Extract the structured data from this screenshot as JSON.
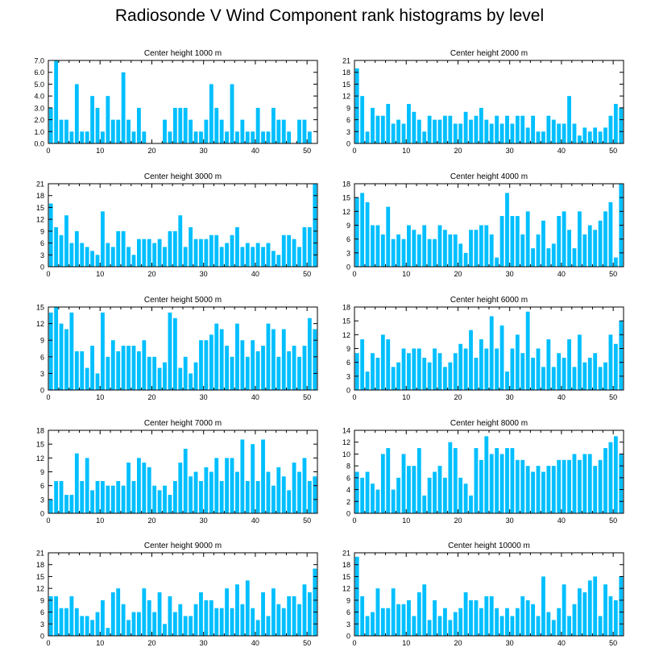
{
  "title": "Radiosonde V Wind Component rank histograms by level",
  "bar_color": "#00bfff",
  "chart_data": [
    {
      "type": "bar",
      "title": "Center height 1000 m",
      "ylim": [
        0,
        7
      ],
      "yticks": [
        "0.0",
        "1.0",
        "2.0",
        "3.0",
        "4.0",
        "5.0",
        "6.0",
        "7.0"
      ],
      "xticks": [
        "0",
        "10",
        "20",
        "30",
        "40",
        "50"
      ],
      "x": [
        0,
        1,
        2,
        3,
        4,
        5,
        6,
        7,
        8,
        9,
        10,
        11,
        12,
        13,
        14,
        15,
        16,
        17,
        18,
        19,
        20,
        21,
        22,
        23,
        24,
        25,
        26,
        27,
        28,
        29,
        30,
        31,
        32,
        33,
        34,
        35,
        36,
        37,
        38,
        39,
        40,
        41,
        42,
        43,
        44,
        45,
        46,
        47,
        48,
        49,
        50,
        51
      ],
      "values": [
        3,
        7,
        2,
        2,
        1,
        5,
        1,
        1,
        4,
        3,
        1,
        4,
        2,
        2,
        6,
        2,
        1,
        3,
        1,
        0,
        0,
        0,
        2,
        1,
        3,
        3,
        3,
        2,
        1,
        1,
        2,
        5,
        3,
        2,
        1,
        5,
        1,
        2,
        1,
        1,
        3,
        1,
        1,
        3,
        2,
        2,
        1,
        0,
        2,
        2,
        1,
        0
      ]
    },
    {
      "type": "bar",
      "title": "Center height 2000 m",
      "ylim": [
        0,
        21
      ],
      "yticks": [
        "0",
        "3",
        "6",
        "9",
        "12",
        "15",
        "18",
        "21"
      ],
      "xticks": [
        "0",
        "10",
        "20",
        "30",
        "40",
        "50"
      ],
      "x": [
        0,
        1,
        2,
        3,
        4,
        5,
        6,
        7,
        8,
        9,
        10,
        11,
        12,
        13,
        14,
        15,
        16,
        17,
        18,
        19,
        20,
        21,
        22,
        23,
        24,
        25,
        26,
        27,
        28,
        29,
        30,
        31,
        32,
        33,
        34,
        35,
        36,
        37,
        38,
        39,
        40,
        41,
        42,
        43,
        44,
        45,
        46,
        47,
        48,
        49,
        50,
        51
      ],
      "values": [
        19,
        12,
        3,
        9,
        7,
        7,
        10,
        5,
        6,
        5,
        10,
        8,
        6,
        3,
        7,
        6,
        6,
        7,
        7,
        5,
        5,
        8,
        6,
        7,
        9,
        6,
        5,
        7,
        5,
        7,
        5,
        7,
        7,
        4,
        7,
        3,
        3,
        7,
        6,
        5,
        5,
        12,
        5,
        2,
        4,
        3,
        4,
        3,
        4,
        7,
        10,
        9
      ]
    },
    {
      "type": "bar",
      "title": "Center height 3000 m",
      "ylim": [
        0,
        21
      ],
      "yticks": [
        "0",
        "3",
        "6",
        "9",
        "12",
        "15",
        "18",
        "21"
      ],
      "xticks": [
        "0",
        "10",
        "20",
        "30",
        "40",
        "50"
      ],
      "x": [
        0,
        1,
        2,
        3,
        4,
        5,
        6,
        7,
        8,
        9,
        10,
        11,
        12,
        13,
        14,
        15,
        16,
        17,
        18,
        19,
        20,
        21,
        22,
        23,
        24,
        25,
        26,
        27,
        28,
        29,
        30,
        31,
        32,
        33,
        34,
        35,
        36,
        37,
        38,
        39,
        40,
        41,
        42,
        43,
        44,
        45,
        46,
        47,
        48,
        49,
        50,
        51
      ],
      "values": [
        16,
        10,
        8,
        13,
        6,
        9,
        6,
        5,
        4,
        3,
        14,
        6,
        5,
        9,
        9,
        5,
        3,
        7,
        7,
        7,
        6,
        7,
        5,
        9,
        9,
        13,
        5,
        10,
        7,
        7,
        7,
        8,
        8,
        5,
        6,
        8,
        10,
        5,
        6,
        5,
        6,
        5,
        6,
        4,
        3,
        8,
        8,
        7,
        5,
        10,
        10,
        21
      ]
    },
    {
      "type": "bar",
      "title": "Center height 4000 m",
      "ylim": [
        0,
        18
      ],
      "yticks": [
        "0",
        "3",
        "6",
        "9",
        "12",
        "15",
        "18"
      ],
      "xticks": [
        "0",
        "10",
        "20",
        "30",
        "40",
        "50"
      ],
      "x": [
        0,
        1,
        2,
        3,
        4,
        5,
        6,
        7,
        8,
        9,
        10,
        11,
        12,
        13,
        14,
        15,
        16,
        17,
        18,
        19,
        20,
        21,
        22,
        23,
        24,
        25,
        26,
        27,
        28,
        29,
        30,
        31,
        32,
        33,
        34,
        35,
        36,
        37,
        38,
        39,
        40,
        41,
        42,
        43,
        44,
        45,
        46,
        47,
        48,
        49,
        50,
        51
      ],
      "values": [
        15,
        16,
        14,
        9,
        9,
        7,
        13,
        6,
        7,
        6,
        9,
        8,
        7,
        9,
        6,
        6,
        9,
        8,
        7,
        7,
        5,
        3,
        8,
        8,
        9,
        9,
        7,
        2,
        11,
        16,
        11,
        11,
        7,
        12,
        4,
        7,
        10,
        4,
        5,
        11,
        12,
        8,
        4,
        12,
        7,
        9,
        8,
        10,
        12,
        14,
        2,
        18
      ]
    },
    {
      "type": "bar",
      "title": "Center height 5000 m",
      "ylim": [
        0,
        15
      ],
      "yticks": [
        "0",
        "3",
        "6",
        "9",
        "12",
        "15"
      ],
      "xticks": [
        "0",
        "10",
        "20",
        "30",
        "40",
        "50"
      ],
      "x": [
        0,
        1,
        2,
        3,
        4,
        5,
        6,
        7,
        8,
        9,
        10,
        11,
        12,
        13,
        14,
        15,
        16,
        17,
        18,
        19,
        20,
        21,
        22,
        23,
        24,
        25,
        26,
        27,
        28,
        29,
        30,
        31,
        32,
        33,
        34,
        35,
        36,
        37,
        38,
        39,
        40,
        41,
        42,
        43,
        44,
        45,
        46,
        47,
        48,
        49,
        50,
        51
      ],
      "values": [
        14,
        15,
        12,
        11,
        14,
        7,
        7,
        4,
        8,
        3,
        14,
        6,
        9,
        7,
        8,
        8,
        8,
        7,
        9,
        6,
        6,
        4,
        5,
        14,
        13,
        4,
        6,
        3,
        5,
        9,
        9,
        10,
        12,
        11,
        8,
        6,
        12,
        9,
        6,
        9,
        7,
        8,
        12,
        11,
        6,
        11,
        7,
        8,
        6,
        8,
        13,
        11
      ]
    },
    {
      "type": "bar",
      "title": "Center height 6000 m",
      "ylim": [
        0,
        18
      ],
      "yticks": [
        "0",
        "3",
        "6",
        "9",
        "12",
        "15",
        "18"
      ],
      "xticks": [
        "0",
        "10",
        "20",
        "30",
        "40",
        "50"
      ],
      "x": [
        0,
        1,
        2,
        3,
        4,
        5,
        6,
        7,
        8,
        9,
        10,
        11,
        12,
        13,
        14,
        15,
        16,
        17,
        18,
        19,
        20,
        21,
        22,
        23,
        24,
        25,
        26,
        27,
        28,
        29,
        30,
        31,
        32,
        33,
        34,
        35,
        36,
        37,
        38,
        39,
        40,
        41,
        42,
        43,
        44,
        45,
        46,
        47,
        48,
        49,
        50,
        51
      ],
      "values": [
        8,
        11,
        4,
        8,
        7,
        12,
        11,
        5,
        6,
        9,
        8,
        9,
        9,
        7,
        6,
        9,
        8,
        5,
        6,
        8,
        10,
        9,
        13,
        7,
        11,
        9,
        16,
        9,
        14,
        4,
        9,
        12,
        8,
        17,
        7,
        9,
        5,
        11,
        5,
        8,
        7,
        11,
        5,
        12,
        6,
        7,
        8,
        5,
        6,
        12,
        10,
        15
      ]
    },
    {
      "type": "bar",
      "title": "Center height 7000 m",
      "ylim": [
        0,
        18
      ],
      "yticks": [
        "0",
        "3",
        "6",
        "9",
        "12",
        "15",
        "18"
      ],
      "xticks": [
        "0",
        "10",
        "20",
        "30",
        "40",
        "50"
      ],
      "x": [
        0,
        1,
        2,
        3,
        4,
        5,
        6,
        7,
        8,
        9,
        10,
        11,
        12,
        13,
        14,
        15,
        16,
        17,
        18,
        19,
        20,
        21,
        22,
        23,
        24,
        25,
        26,
        27,
        28,
        29,
        30,
        31,
        32,
        33,
        34,
        35,
        36,
        37,
        38,
        39,
        40,
        41,
        42,
        43,
        44,
        45,
        46,
        47,
        48,
        49,
        50,
        51
      ],
      "values": [
        3,
        7,
        7,
        4,
        4,
        13,
        7,
        12,
        5,
        7,
        7,
        6,
        6,
        7,
        6,
        11,
        7,
        12,
        11,
        10,
        6,
        5,
        6,
        4,
        7,
        11,
        14,
        8,
        9,
        7,
        10,
        9,
        12,
        7,
        12,
        12,
        9,
        16,
        7,
        15,
        7,
        16,
        9,
        6,
        10,
        8,
        5,
        11,
        9,
        12,
        7,
        8
      ]
    },
    {
      "type": "bar",
      "title": "Center height 8000 m",
      "ylim": [
        0,
        14
      ],
      "yticks": [
        "0",
        "2",
        "4",
        "6",
        "8",
        "10",
        "12",
        "14"
      ],
      "xticks": [
        "0",
        "10",
        "20",
        "30",
        "40",
        "50"
      ],
      "x": [
        0,
        1,
        2,
        3,
        4,
        5,
        6,
        7,
        8,
        9,
        10,
        11,
        12,
        13,
        14,
        15,
        16,
        17,
        18,
        19,
        20,
        21,
        22,
        23,
        24,
        25,
        26,
        27,
        28,
        29,
        30,
        31,
        32,
        33,
        34,
        35,
        36,
        37,
        38,
        39,
        40,
        41,
        42,
        43,
        44,
        45,
        46,
        47,
        48,
        49,
        50,
        51
      ],
      "values": [
        7,
        6,
        7,
        5,
        4,
        10,
        11,
        4,
        6,
        10,
        8,
        8,
        11,
        3,
        6,
        7,
        8,
        6,
        12,
        11,
        6,
        5,
        3,
        11,
        9,
        13,
        10,
        11,
        10,
        11,
        11,
        9,
        9,
        8,
        7,
        8,
        7,
        8,
        8,
        9,
        9,
        9,
        10,
        9,
        10,
        10,
        8,
        9,
        11,
        12,
        13,
        10
      ]
    },
    {
      "type": "bar",
      "title": "Center height 9000 m",
      "ylim": [
        0,
        21
      ],
      "yticks": [
        "0",
        "3",
        "6",
        "9",
        "12",
        "15",
        "18",
        "21"
      ],
      "xticks": [
        "0",
        "10",
        "20",
        "30",
        "40",
        "50"
      ],
      "x": [
        0,
        1,
        2,
        3,
        4,
        5,
        6,
        7,
        8,
        9,
        10,
        11,
        12,
        13,
        14,
        15,
        16,
        17,
        18,
        19,
        20,
        21,
        22,
        23,
        24,
        25,
        26,
        27,
        28,
        29,
        30,
        31,
        32,
        33,
        34,
        35,
        36,
        37,
        38,
        39,
        40,
        41,
        42,
        43,
        44,
        45,
        46,
        47,
        48,
        49,
        50,
        51
      ],
      "values": [
        10,
        10,
        7,
        7,
        10,
        7,
        5,
        5,
        4,
        6,
        9,
        2,
        11,
        12,
        8,
        4,
        6,
        6,
        12,
        9,
        6,
        11,
        3,
        10,
        6,
        8,
        5,
        5,
        8,
        11,
        9,
        9,
        7,
        7,
        12,
        7,
        13,
        8,
        14,
        7,
        4,
        11,
        5,
        12,
        8,
        7,
        10,
        10,
        8,
        13,
        11,
        17
      ]
    },
    {
      "type": "bar",
      "title": "Center height 10000 m",
      "ylim": [
        0,
        21
      ],
      "yticks": [
        "0",
        "3",
        "6",
        "9",
        "12",
        "15",
        "18",
        "21"
      ],
      "xticks": [
        "0",
        "10",
        "20",
        "30",
        "40",
        "50"
      ],
      "x": [
        0,
        1,
        2,
        3,
        4,
        5,
        6,
        7,
        8,
        9,
        10,
        11,
        12,
        13,
        14,
        15,
        16,
        17,
        18,
        19,
        20,
        21,
        22,
        23,
        24,
        25,
        26,
        27,
        28,
        29,
        30,
        31,
        32,
        33,
        34,
        35,
        36,
        37,
        38,
        39,
        40,
        41,
        42,
        43,
        44,
        45,
        46,
        47,
        48,
        49,
        50,
        51
      ],
      "values": [
        20,
        10,
        5,
        6,
        12,
        7,
        7,
        12,
        8,
        8,
        9,
        5,
        11,
        13,
        4,
        9,
        5,
        7,
        4,
        6,
        7,
        11,
        9,
        9,
        7,
        10,
        10,
        7,
        5,
        7,
        5,
        7,
        10,
        9,
        8,
        5,
        15,
        6,
        4,
        7,
        13,
        5,
        8,
        12,
        11,
        14,
        15,
        5,
        13,
        10,
        9,
        15
      ]
    }
  ]
}
